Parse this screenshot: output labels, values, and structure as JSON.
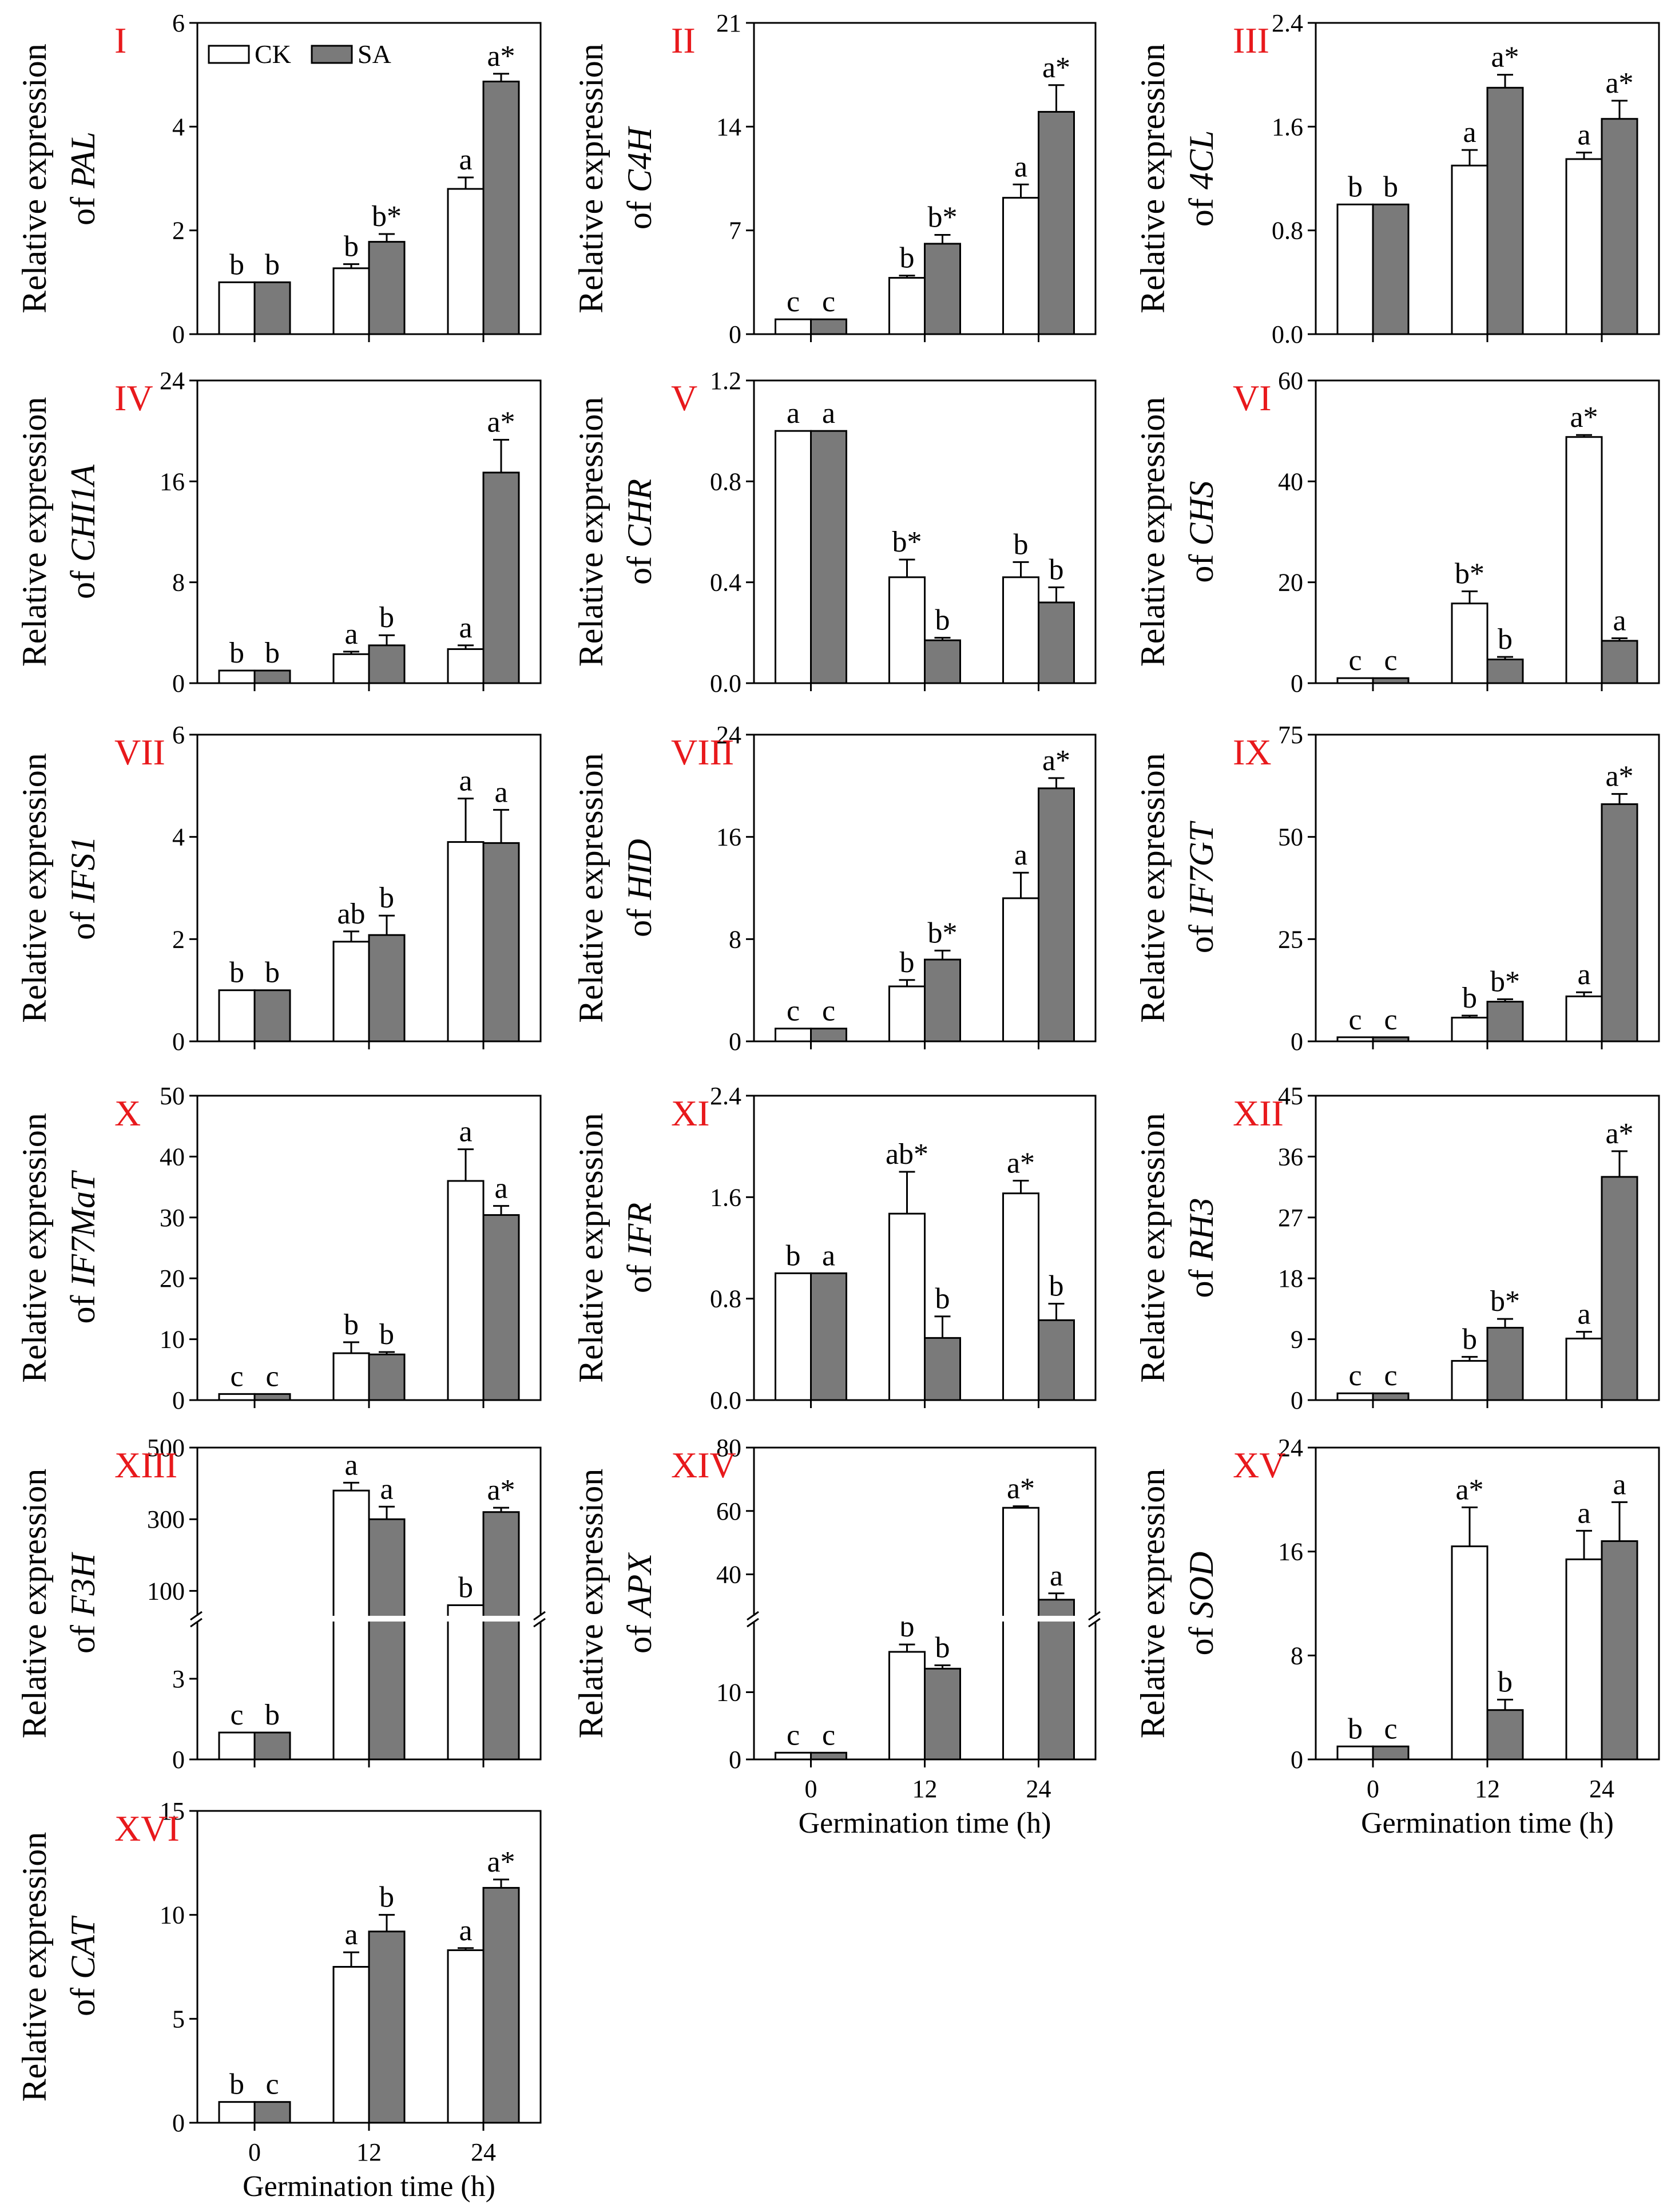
{
  "legend": {
    "ck": "CK",
    "sa": "SA"
  },
  "colors": {
    "ck": "#ffffff",
    "sa": "#7a7a7a",
    "panel_label": "#e8191c",
    "axis": "#000000"
  },
  "ylabel_prefix": "Relative expression",
  "ylabel_of": "of",
  "xlabel": "Germination time (h)",
  "chart_data": [
    {
      "type": "bar",
      "panel": "I",
      "gene": "PAL",
      "categories": [
        "0",
        "12",
        "24"
      ],
      "ylim": [
        0,
        6
      ],
      "yticks": [
        "0",
        "2",
        "4",
        "6"
      ],
      "series": [
        {
          "name": "CK",
          "values": [
            1.0,
            1.27,
            2.8
          ],
          "errors": [
            0,
            0.08,
            0.22
          ],
          "labels": [
            "b",
            "b",
            "a"
          ]
        },
        {
          "name": "SA",
          "values": [
            1.0,
            1.78,
            4.87
          ],
          "errors": [
            0,
            0.15,
            0.15
          ],
          "labels": [
            "b",
            "b*",
            "a*"
          ]
        }
      ]
    },
    {
      "type": "bar",
      "panel": "II",
      "gene": "C4H",
      "categories": [
        "0",
        "12",
        "24"
      ],
      "ylim": [
        0,
        21
      ],
      "yticks": [
        "0",
        "7",
        "14",
        "21"
      ],
      "series": [
        {
          "name": "CK",
          "values": [
            1.0,
            3.8,
            9.2
          ],
          "errors": [
            0,
            0.15,
            0.9
          ],
          "labels": [
            "c",
            "b",
            "a"
          ]
        },
        {
          "name": "SA",
          "values": [
            1.0,
            6.1,
            15.0
          ],
          "errors": [
            0,
            0.6,
            1.8
          ],
          "labels": [
            "c",
            "b*",
            "a*"
          ]
        }
      ]
    },
    {
      "type": "bar",
      "panel": "III",
      "gene": "4CL",
      "categories": [
        "0",
        "12",
        "24"
      ],
      "ylim": [
        0,
        2.4
      ],
      "yticks": [
        "0.0",
        "0.8",
        "1.6",
        "2.4"
      ],
      "series": [
        {
          "name": "CK",
          "values": [
            1.0,
            1.3,
            1.35
          ],
          "errors": [
            0,
            0.12,
            0.05
          ],
          "labels": [
            "b",
            "a",
            "a"
          ]
        },
        {
          "name": "SA",
          "values": [
            1.0,
            1.9,
            1.66
          ],
          "errors": [
            0,
            0.1,
            0.14
          ],
          "labels": [
            "b",
            "a*",
            "a*"
          ]
        }
      ]
    },
    {
      "type": "bar",
      "panel": "IV",
      "gene": "CHI1A",
      "categories": [
        "0",
        "12",
        "24"
      ],
      "ylim": [
        0,
        24
      ],
      "yticks": [
        "0",
        "8",
        "16",
        "24"
      ],
      "series": [
        {
          "name": "CK",
          "values": [
            1.0,
            2.3,
            2.7
          ],
          "errors": [
            0,
            0.2,
            0.3
          ],
          "labels": [
            "b",
            "a",
            "a"
          ]
        },
        {
          "name": "SA",
          "values": [
            1.0,
            3.0,
            16.7
          ],
          "errors": [
            0,
            0.8,
            2.6
          ],
          "labels": [
            "b",
            "b",
            "a*"
          ]
        }
      ]
    },
    {
      "type": "bar",
      "panel": "V",
      "gene": "CHR",
      "categories": [
        "0",
        "12",
        "24"
      ],
      "ylim": [
        0,
        1.2
      ],
      "yticks": [
        "0.0",
        "0.4",
        "0.8",
        "1.2"
      ],
      "series": [
        {
          "name": "CK",
          "values": [
            1.0,
            0.42,
            0.42
          ],
          "errors": [
            0,
            0.07,
            0.06
          ],
          "labels": [
            "a",
            "b*",
            "b"
          ]
        },
        {
          "name": "SA",
          "values": [
            1.0,
            0.17,
            0.32
          ],
          "errors": [
            0,
            0.01,
            0.06
          ],
          "labels": [
            "a",
            "b",
            "b"
          ]
        }
      ]
    },
    {
      "type": "bar",
      "panel": "VI",
      "gene": "CHS",
      "categories": [
        "0",
        "12",
        "24"
      ],
      "ylim": [
        0,
        60
      ],
      "yticks": [
        "0",
        "20",
        "40",
        "60"
      ],
      "series": [
        {
          "name": "CK",
          "values": [
            1.0,
            15.8,
            48.8
          ],
          "errors": [
            0,
            2.4,
            0.4
          ],
          "labels": [
            "c",
            "b*",
            "a*"
          ]
        },
        {
          "name": "SA",
          "values": [
            1.0,
            4.7,
            8.4
          ],
          "errors": [
            0,
            0.5,
            0.5
          ],
          "labels": [
            "c",
            "b",
            "a"
          ]
        }
      ]
    },
    {
      "type": "bar",
      "panel": "VII",
      "gene": "IFS1",
      "categories": [
        "0",
        "12",
        "24"
      ],
      "ylim": [
        0,
        6
      ],
      "yticks": [
        "0",
        "2",
        "4",
        "6"
      ],
      "series": [
        {
          "name": "CK",
          "values": [
            1.0,
            1.95,
            3.9
          ],
          "errors": [
            0,
            0.2,
            0.85
          ],
          "labels": [
            "b",
            "ab",
            "a"
          ]
        },
        {
          "name": "SA",
          "values": [
            1.0,
            2.08,
            3.88
          ],
          "errors": [
            0,
            0.38,
            0.65
          ],
          "labels": [
            "b",
            "b",
            "a"
          ]
        }
      ]
    },
    {
      "type": "bar",
      "panel": "VIII",
      "gene": "HID",
      "categories": [
        "0",
        "12",
        "24"
      ],
      "ylim": [
        0,
        24
      ],
      "yticks": [
        "0",
        "8",
        "16",
        "24"
      ],
      "series": [
        {
          "name": "CK",
          "values": [
            1.0,
            4.3,
            11.2
          ],
          "errors": [
            0,
            0.5,
            2.0
          ],
          "labels": [
            "c",
            "b",
            "a"
          ]
        },
        {
          "name": "SA",
          "values": [
            1.0,
            6.4,
            19.8
          ],
          "errors": [
            0,
            0.7,
            0.8
          ],
          "labels": [
            "c",
            "b*",
            "a*"
          ]
        }
      ]
    },
    {
      "type": "bar",
      "panel": "IX",
      "gene": "IF7GT",
      "categories": [
        "0",
        "12",
        "24"
      ],
      "ylim": [
        0,
        75
      ],
      "yticks": [
        "0",
        "25",
        "50",
        "75"
      ],
      "series": [
        {
          "name": "CK",
          "values": [
            1.0,
            5.8,
            11.0
          ],
          "errors": [
            0,
            0.5,
            1.0
          ],
          "labels": [
            "c",
            "b",
            "a"
          ]
        },
        {
          "name": "SA",
          "values": [
            1.0,
            9.7,
            58.0
          ],
          "errors": [
            0,
            0.6,
            2.5
          ],
          "labels": [
            "c",
            "b*",
            "a*"
          ]
        }
      ]
    },
    {
      "type": "bar",
      "panel": "X",
      "gene": "IF7MaT",
      "categories": [
        "0",
        "12",
        "24"
      ],
      "ylim": [
        0,
        50
      ],
      "yticks": [
        "0",
        "10",
        "20",
        "30",
        "40",
        "50"
      ],
      "series": [
        {
          "name": "CK",
          "values": [
            1.0,
            7.7,
            36.0
          ],
          "errors": [
            0,
            1.8,
            5.2
          ],
          "labels": [
            "c",
            "b",
            "a"
          ]
        },
        {
          "name": "SA",
          "values": [
            1.0,
            7.5,
            30.4
          ],
          "errors": [
            0,
            0.4,
            1.5
          ],
          "labels": [
            "c",
            "b",
            "a"
          ]
        }
      ]
    },
    {
      "type": "bar",
      "panel": "XI",
      "gene": "IFR",
      "categories": [
        "0",
        "12",
        "24"
      ],
      "ylim": [
        0,
        2.4
      ],
      "yticks": [
        "0.0",
        "0.8",
        "1.6",
        "2.4"
      ],
      "series": [
        {
          "name": "CK",
          "values": [
            1.0,
            1.47,
            1.63
          ],
          "errors": [
            0,
            0.33,
            0.1
          ],
          "labels": [
            "b",
            "ab*",
            "a*"
          ]
        },
        {
          "name": "SA",
          "values": [
            1.0,
            0.49,
            0.63
          ],
          "errors": [
            0,
            0.17,
            0.13
          ],
          "labels": [
            "a",
            "b",
            "b"
          ]
        }
      ]
    },
    {
      "type": "bar",
      "panel": "XII",
      "gene": "RH3",
      "categories": [
        "0",
        "12",
        "24"
      ],
      "ylim": [
        0,
        45
      ],
      "yticks": [
        "0",
        "9",
        "18",
        "27",
        "36",
        "45"
      ],
      "series": [
        {
          "name": "CK",
          "values": [
            1.0,
            5.8,
            9.1
          ],
          "errors": [
            0,
            0.6,
            1.0
          ],
          "labels": [
            "c",
            "b",
            "a"
          ]
        },
        {
          "name": "SA",
          "values": [
            1.0,
            10.7,
            33.0
          ],
          "errors": [
            0,
            1.3,
            3.8
          ],
          "labels": [
            "c",
            "b*",
            "a*"
          ]
        }
      ]
    },
    {
      "type": "bar",
      "panel": "XIII",
      "gene": "F3H",
      "broken_axis": true,
      "categories": [
        "0",
        "12",
        "24"
      ],
      "yticks": [
        "0",
        "3",
        "100",
        "300",
        "500"
      ],
      "series": [
        {
          "name": "CK",
          "values": [
            1.0,
            380,
            60
          ],
          "errors": [
            0,
            22,
            0
          ],
          "labels": [
            "c",
            "a",
            "b"
          ]
        },
        {
          "name": "SA",
          "values": [
            1.0,
            300,
            320
          ],
          "errors": [
            0,
            35,
            12
          ],
          "labels": [
            "b",
            "a",
            "a*"
          ]
        }
      ]
    },
    {
      "type": "bar",
      "panel": "XIV",
      "gene": "APX",
      "broken_axis": true,
      "categories": [
        "0",
        "12",
        "24"
      ],
      "yticks": [
        "0",
        "10",
        "40",
        "60",
        "80"
      ],
      "series": [
        {
          "name": "CK",
          "values": [
            1.0,
            16.0,
            61.0
          ],
          "errors": [
            0,
            1.1,
            0.5
          ],
          "labels": [
            "c",
            "b",
            "a*"
          ]
        },
        {
          "name": "SA",
          "values": [
            1.0,
            13.5,
            32.0
          ],
          "errors": [
            0,
            0.5,
            2.0
          ],
          "labels": [
            "c",
            "b",
            "a"
          ]
        }
      ]
    },
    {
      "type": "bar",
      "panel": "XV",
      "gene": "SOD",
      "categories": [
        "0",
        "12",
        "24"
      ],
      "ylim": [
        0,
        24
      ],
      "yticks": [
        "0",
        "8",
        "16",
        "24"
      ],
      "series": [
        {
          "name": "CK",
          "values": [
            1.0,
            16.4,
            15.4
          ],
          "errors": [
            0,
            3.0,
            2.2
          ],
          "labels": [
            "b",
            "a*",
            "a"
          ]
        },
        {
          "name": "SA",
          "values": [
            1.0,
            3.8,
            16.8
          ],
          "errors": [
            0,
            0.8,
            3.0
          ],
          "labels": [
            "c",
            "b",
            "a"
          ]
        }
      ]
    },
    {
      "type": "bar",
      "panel": "XVI",
      "gene": "CAT",
      "categories": [
        "0",
        "12",
        "24"
      ],
      "ylim": [
        0,
        15
      ],
      "yticks": [
        "0",
        "5",
        "10",
        "15"
      ],
      "series": [
        {
          "name": "CK",
          "values": [
            1.0,
            7.5,
            8.3
          ],
          "errors": [
            0,
            0.7,
            0.1
          ],
          "labels": [
            "b",
            "a",
            "a"
          ]
        },
        {
          "name": "SA",
          "values": [
            1.0,
            9.2,
            11.3
          ],
          "errors": [
            0,
            0.8,
            0.4
          ],
          "labels": [
            "c",
            "b",
            "a*"
          ]
        }
      ]
    }
  ]
}
